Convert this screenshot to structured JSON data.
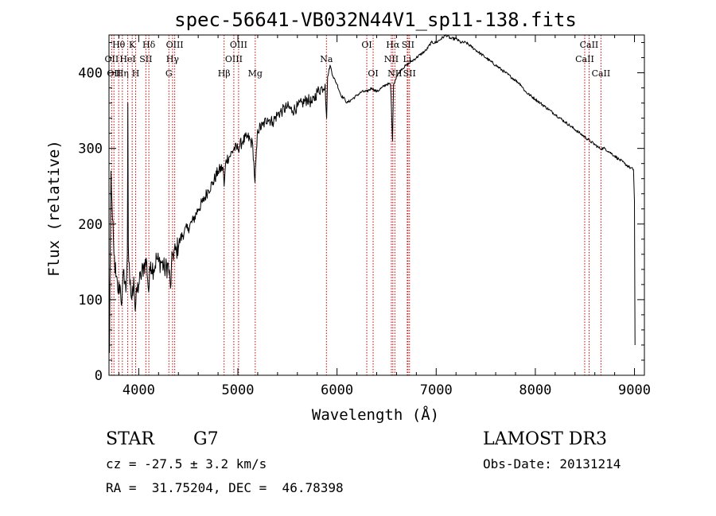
{
  "chart_data": {
    "type": "line",
    "title": "spec-56641-VB032N44V1_sp11-138.fits",
    "xlabel": "Wavelength (Å)",
    "ylabel": "Flux (relative)",
    "xlim": [
      3700,
      9100
    ],
    "ylim": [
      0,
      450
    ],
    "x_ticks": [
      4000,
      5000,
      6000,
      7000,
      8000,
      9000
    ],
    "y_ticks": [
      0,
      100,
      200,
      300,
      400
    ],
    "grid": false,
    "series": [
      {
        "name": "spectrum",
        "points": [
          [
            3700,
            140
          ],
          [
            3705,
            30
          ],
          [
            3710,
            120
          ],
          [
            3720,
            270
          ],
          [
            3735,
            205
          ],
          [
            3750,
            160
          ],
          [
            3770,
            130
          ],
          [
            3790,
            110
          ],
          [
            3810,
            120
          ],
          [
            3830,
            95
          ],
          [
            3850,
            140
          ],
          [
            3870,
            110
          ],
          [
            3885,
            160
          ],
          [
            3890,
            360
          ],
          [
            3895,
            170
          ],
          [
            3910,
            120
          ],
          [
            3930,
            100
          ],
          [
            3950,
            130
          ],
          [
            3965,
            85
          ],
          [
            3980,
            110
          ],
          [
            4000,
            120
          ],
          [
            4020,
            130
          ],
          [
            4050,
            145
          ],
          [
            4080,
            150
          ],
          [
            4100,
            110
          ],
          [
            4120,
            150
          ],
          [
            4150,
            140
          ],
          [
            4180,
            155
          ],
          [
            4200,
            150
          ],
          [
            4230,
            150
          ],
          [
            4260,
            140
          ],
          [
            4300,
            145
          ],
          [
            4320,
            115
          ],
          [
            4340,
            160
          ],
          [
            4380,
            165
          ],
          [
            4420,
            180
          ],
          [
            4460,
            190
          ],
          [
            4500,
            195
          ],
          [
            4550,
            205
          ],
          [
            4600,
            220
          ],
          [
            4650,
            230
          ],
          [
            4700,
            245
          ],
          [
            4750,
            255
          ],
          [
            4800,
            270
          ],
          [
            4850,
            275
          ],
          [
            4861,
            250
          ],
          [
            4880,
            285
          ],
          [
            4920,
            290
          ],
          [
            4960,
            300
          ],
          [
            5000,
            300
          ],
          [
            5050,
            310
          ],
          [
            5100,
            315
          ],
          [
            5150,
            305
          ],
          [
            5172,
            255
          ],
          [
            5200,
            325
          ],
          [
            5250,
            330
          ],
          [
            5300,
            340
          ],
          [
            5350,
            335
          ],
          [
            5400,
            345
          ],
          [
            5450,
            350
          ],
          [
            5500,
            355
          ],
          [
            5550,
            350
          ],
          [
            5600,
            355
          ],
          [
            5650,
            360
          ],
          [
            5700,
            365
          ],
          [
            5750,
            360
          ],
          [
            5800,
            375
          ],
          [
            5850,
            380
          ],
          [
            5880,
            385
          ],
          [
            5895,
            340
          ],
          [
            5905,
            395
          ],
          [
            5930,
            410
          ],
          [
            5960,
            395
          ],
          [
            6000,
            385
          ],
          [
            6040,
            370
          ],
          [
            6080,
            365
          ],
          [
            6100,
            360
          ],
          [
            6150,
            365
          ],
          [
            6200,
            370
          ],
          [
            6250,
            375
          ],
          [
            6300,
            375
          ],
          [
            6350,
            380
          ],
          [
            6400,
            375
          ],
          [
            6450,
            380
          ],
          [
            6500,
            385
          ],
          [
            6540,
            385
          ],
          [
            6560,
            310
          ],
          [
            6570,
            385
          ],
          [
            6600,
            395
          ],
          [
            6650,
            405
          ],
          [
            6700,
            410
          ],
          [
            6750,
            415
          ],
          [
            6800,
            420
          ],
          [
            6850,
            425
          ],
          [
            6900,
            430
          ],
          [
            6950,
            440
          ],
          [
            7000,
            440
          ],
          [
            7050,
            445
          ],
          [
            7100,
            450
          ],
          [
            7150,
            445
          ],
          [
            7200,
            445
          ],
          [
            7250,
            440
          ],
          [
            7300,
            440
          ],
          [
            7350,
            435
          ],
          [
            7400,
            430
          ],
          [
            7450,
            425
          ],
          [
            7500,
            420
          ],
          [
            7550,
            415
          ],
          [
            7600,
            410
          ],
          [
            7650,
            405
          ],
          [
            7700,
            400
          ],
          [
            7750,
            395
          ],
          [
            7800,
            390
          ],
          [
            7850,
            385
          ],
          [
            7900,
            375
          ],
          [
            7950,
            370
          ],
          [
            8000,
            365
          ],
          [
            8050,
            360
          ],
          [
            8100,
            355
          ],
          [
            8150,
            350
          ],
          [
            8200,
            345
          ],
          [
            8250,
            340
          ],
          [
            8300,
            335
          ],
          [
            8350,
            330
          ],
          [
            8400,
            325
          ],
          [
            8450,
            320
          ],
          [
            8500,
            315
          ],
          [
            8550,
            310
          ],
          [
            8600,
            305
          ],
          [
            8650,
            300
          ],
          [
            8700,
            300
          ],
          [
            8750,
            295
          ],
          [
            8800,
            290
          ],
          [
            8850,
            285
          ],
          [
            8900,
            280
          ],
          [
            8950,
            275
          ],
          [
            8990,
            272
          ],
          [
            9000,
            230
          ],
          [
            9005,
            40
          ]
        ]
      }
    ],
    "lines": [
      {
        "wavelength": 3727,
        "label": "OII",
        "row": 1
      },
      {
        "wavelength": 3750,
        "label": "OII",
        "row": 2
      },
      {
        "wavelength": 3798,
        "label": "Hθ",
        "row": 0
      },
      {
        "wavelength": 3835,
        "label": "Hη",
        "row": 2
      },
      {
        "wavelength": 3889,
        "label": "HeI",
        "row": 1
      },
      {
        "wavelength": 3934,
        "label": "K",
        "row": 0
      },
      {
        "wavelength": 3969,
        "label": "H",
        "row": 2
      },
      {
        "wavelength": 4072,
        "label": "SII",
        "row": 1
      },
      {
        "wavelength": 4102,
        "label": "Hδ",
        "row": 0
      },
      {
        "wavelength": 4304,
        "label": "G",
        "row": 2
      },
      {
        "wavelength": 4341,
        "label": "Hγ",
        "row": 1
      },
      {
        "wavelength": 4363,
        "label": "OIII",
        "row": 0
      },
      {
        "wavelength": 4861,
        "label": "Hβ",
        "row": 2
      },
      {
        "wavelength": 4959,
        "label": "OIII",
        "row": 1
      },
      {
        "wavelength": 5007,
        "label": "OIII",
        "row": 0
      },
      {
        "wavelength": 5175,
        "label": "Mg",
        "row": 2
      },
      {
        "wavelength": 5893,
        "label": "Na",
        "row": 1
      },
      {
        "wavelength": 6300,
        "label": "OI",
        "row": 0
      },
      {
        "wavelength": 6364,
        "label": "OI",
        "row": 2
      },
      {
        "wavelength": 6548,
        "label": "NII",
        "row": 1
      },
      {
        "wavelength": 6563,
        "label": "Hα",
        "row": 0
      },
      {
        "wavelength": 6583,
        "label": "NII",
        "row": 2
      },
      {
        "wavelength": 6708,
        "label": "Li",
        "row": 1
      },
      {
        "wavelength": 6716,
        "label": "SII",
        "row": 0
      },
      {
        "wavelength": 6731,
        "label": "SII",
        "row": 2
      },
      {
        "wavelength": 8498,
        "label": "CaII",
        "row": 1
      },
      {
        "wavelength": 8542,
        "label": "CaII",
        "row": 0
      },
      {
        "wavelength": 8662,
        "label": "CaII",
        "row": 2
      }
    ]
  },
  "info": {
    "class_label": "STAR",
    "subclass": "G7",
    "cz_text": "cz = -27.5 ± 3.2 km/s",
    "coords_text": "RA =  31.75204, DEC =  46.78398",
    "survey": "LAMOST DR3",
    "obs_date_text": "Obs-Date: 20131214"
  },
  "colors": {
    "spectrum": "#000000",
    "line_marker": "#cc0000",
    "axes": "#000000"
  }
}
